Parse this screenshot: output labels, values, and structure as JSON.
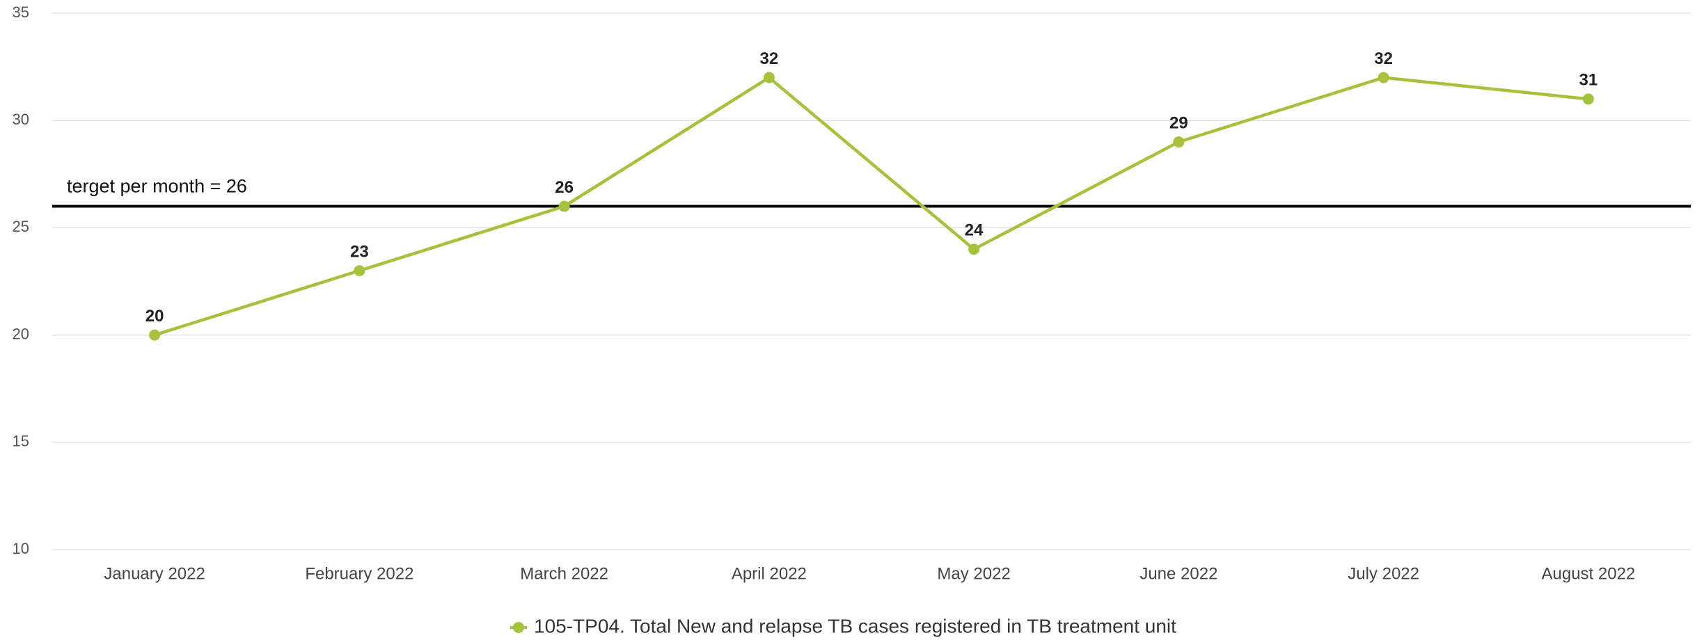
{
  "chart_data": {
    "type": "line",
    "categories": [
      "January 2022",
      "February 2022",
      "March 2022",
      "April 2022",
      "May 2022",
      "June 2022",
      "July 2022",
      "August 2022"
    ],
    "series": [
      {
        "name": "105-TP04. Total New and relapse TB cases registered in TB treatment unit",
        "color": "#a5c23c",
        "values": [
          20,
          23,
          26,
          32,
          24,
          29,
          32,
          31
        ]
      }
    ],
    "ylim": [
      10,
      35
    ],
    "yticks": [
      10,
      15,
      20,
      25,
      30,
      35
    ],
    "grid": true,
    "target": {
      "value": 26,
      "label": "terget per month = 26",
      "color": "#000000"
    },
    "legend": "bottom"
  }
}
